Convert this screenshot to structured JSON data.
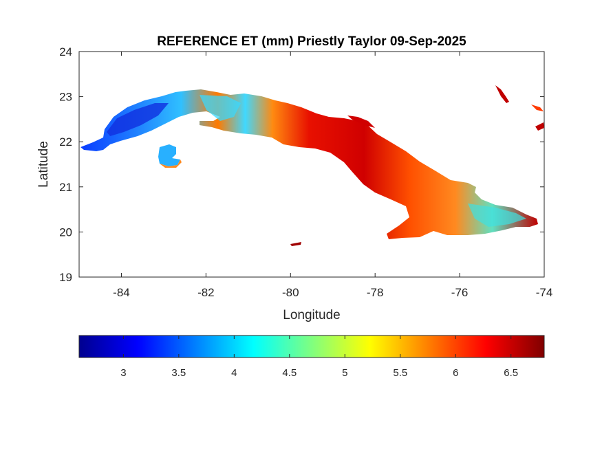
{
  "title": "REFERENCE ET (mm) Priestly Taylor 09-Sep-2025",
  "x_axis": {
    "label": "Longitude",
    "range": [
      -85,
      -74
    ],
    "ticks": [
      {
        "value": -84,
        "label": "-84"
      },
      {
        "value": -82,
        "label": "-82"
      },
      {
        "value": -80,
        "label": "-80"
      },
      {
        "value": -78,
        "label": "-78"
      },
      {
        "value": -76,
        "label": "-76"
      },
      {
        "value": -74,
        "label": "-74"
      }
    ]
  },
  "y_axis": {
    "label": "Latitude",
    "range": [
      19,
      24
    ],
    "ticks": [
      {
        "value": 19,
        "label": "19"
      },
      {
        "value": 20,
        "label": "20"
      },
      {
        "value": 21,
        "label": "21"
      },
      {
        "value": 22,
        "label": "22"
      },
      {
        "value": 23,
        "label": "23"
      },
      {
        "value": 24,
        "label": "24"
      }
    ]
  },
  "colorbar": {
    "colormap": "jet",
    "range": [
      2.6,
      6.8
    ],
    "ticks": [
      {
        "value": 3,
        "label": "3"
      },
      {
        "value": 3.5,
        "label": "3.5"
      },
      {
        "value": 4,
        "label": "4"
      },
      {
        "value": 4.5,
        "label": "4.5"
      },
      {
        "value": 5,
        "label": "5"
      },
      {
        "value": 5.5,
        "label": "5.5"
      },
      {
        "value": 6,
        "label": "6"
      },
      {
        "value": 6.5,
        "label": "6.5"
      }
    ]
  },
  "map_regions": [
    {
      "id": "western-cuba",
      "et_mm": 3.4,
      "color": "#1f7fff"
    },
    {
      "id": "pinar-north-coast",
      "et_mm": 4.3,
      "color": "#2fd8ff"
    },
    {
      "id": "havana-matanzas",
      "et_mm": 5.9,
      "color": "#ff6a00"
    },
    {
      "id": "central-cuba",
      "et_mm": 6.4,
      "color": "#e81000"
    },
    {
      "id": "camaguey-plains",
      "et_mm": 6.2,
      "color": "#f03000"
    },
    {
      "id": "eastern-mountains",
      "et_mm": 4.4,
      "color": "#40e0d0"
    },
    {
      "id": "isla-de-la-juventud",
      "et_mm": 4.0,
      "color": "#28c8ff"
    }
  ]
}
